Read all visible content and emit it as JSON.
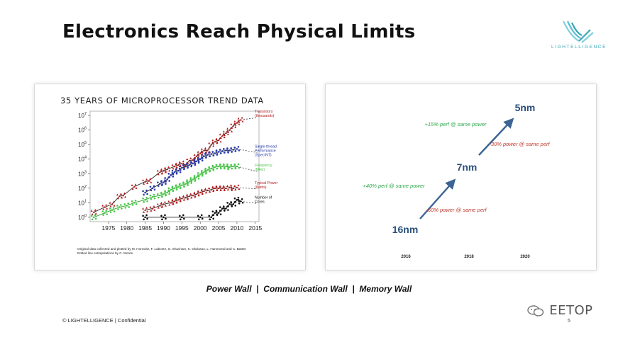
{
  "slide": {
    "title": "Electronics Reach Physical Limits",
    "logo_text": "LIGHTELLIGENCE",
    "walls_text": "Power Wall  |  Communication Wall  |  Memory Wall",
    "copyright": "© LIGHTELLIGENCE | Confidential",
    "page_number": "5",
    "watermark": "EETOP"
  },
  "colors": {
    "transistors": "#b01c1c",
    "single_thread": "#2a3ca8",
    "frequency": "#4cc94c",
    "power": "#b01c1c",
    "cores": "#111111",
    "arrow": "#3c6494",
    "node_text": "#2a4f7c",
    "perf_text": "#2ea84a",
    "power_text": "#c0392b"
  },
  "chart_data": [
    {
      "type": "scatter",
      "title": "35 YEARS OF MICROPROCESSOR TREND DATA",
      "x_ticks": [
        "1975",
        "1980",
        "1985",
        "1990",
        "1995",
        "2000",
        "2005",
        "2010",
        "2015"
      ],
      "y_ticks": [
        "10^0",
        "10^1",
        "10^2",
        "10^3",
        "10^4",
        "10^5",
        "10^6",
        "10^7"
      ],
      "xlim": [
        1970,
        2016
      ],
      "ylim_log10": [
        -0.3,
        7.3
      ],
      "y_scale": "log",
      "series": [
        {
          "name": "Transistors\n(thousands)",
          "color_key": "transistors",
          "marker": "triangle",
          "points": [
            [
              1971,
              0.35
            ],
            [
              1974,
              0.7
            ],
            [
              1976,
              0.9
            ],
            [
              1978,
              1.45
            ],
            [
              1979,
              1.5
            ],
            [
              1982,
              2.1
            ],
            [
              1985,
              2.45
            ],
            [
              1986,
              2.5
            ],
            [
              1989,
              3.1
            ],
            [
              1990,
              3.2
            ],
            [
              1991,
              3.3
            ],
            [
              1993,
              3.5
            ],
            [
              1994,
              3.6
            ],
            [
              1995,
              3.7
            ],
            [
              1996,
              3.6
            ],
            [
              1997,
              3.9
            ],
            [
              1998,
              3.95
            ],
            [
              1999,
              4.2
            ],
            [
              2000,
              4.4
            ],
            [
              2001,
              4.6
            ],
            [
              2002,
              4.6
            ],
            [
              2003,
              5.0
            ],
            [
              2004,
              5.2
            ],
            [
              2005,
              5.3
            ],
            [
              2006,
              5.6
            ],
            [
              2007,
              5.8
            ],
            [
              2008,
              6.0
            ],
            [
              2009,
              6.3
            ],
            [
              2010,
              6.5
            ],
            [
              2011,
              6.7
            ]
          ]
        },
        {
          "name": "Single-thread\nPerformance\n(SpecINT)",
          "color_key": "single_thread",
          "marker": "dot",
          "points": [
            [
              1985,
              1.7
            ],
            [
              1987,
              2.0
            ],
            [
              1989,
              2.3
            ],
            [
              1990,
              2.4
            ],
            [
              1991,
              2.6
            ],
            [
              1992,
              2.9
            ],
            [
              1993,
              3.1
            ],
            [
              1994,
              3.2
            ],
            [
              1995,
              3.4
            ],
            [
              1996,
              3.5
            ],
            [
              1997,
              3.6
            ],
            [
              1998,
              3.7
            ],
            [
              1999,
              3.85
            ],
            [
              2000,
              4.0
            ],
            [
              2001,
              4.2
            ],
            [
              2002,
              4.3
            ],
            [
              2003,
              4.35
            ],
            [
              2004,
              4.4
            ],
            [
              2005,
              4.5
            ],
            [
              2006,
              4.55
            ],
            [
              2007,
              4.6
            ],
            [
              2008,
              4.6
            ],
            [
              2009,
              4.65
            ],
            [
              2010,
              4.7
            ]
          ]
        },
        {
          "name": "Frequency\n(MHz)",
          "color_key": "frequency",
          "marker": "dot",
          "points": [
            [
              1971,
              0.0
            ],
            [
              1974,
              0.3
            ],
            [
              1976,
              0.5
            ],
            [
              1978,
              0.7
            ],
            [
              1980,
              0.8
            ],
            [
              1982,
              1.0
            ],
            [
              1985,
              1.2
            ],
            [
              1987,
              1.4
            ],
            [
              1989,
              1.5
            ],
            [
              1990,
              1.6
            ],
            [
              1991,
              1.7
            ],
            [
              1992,
              1.9
            ],
            [
              1993,
              2.0
            ],
            [
              1994,
              2.1
            ],
            [
              1995,
              2.2
            ],
            [
              1996,
              2.3
            ],
            [
              1997,
              2.45
            ],
            [
              1998,
              2.6
            ],
            [
              1999,
              2.75
            ],
            [
              2000,
              2.95
            ],
            [
              2001,
              3.1
            ],
            [
              2002,
              3.25
            ],
            [
              2003,
              3.35
            ],
            [
              2004,
              3.45
            ],
            [
              2005,
              3.5
            ],
            [
              2006,
              3.5
            ],
            [
              2007,
              3.5
            ],
            [
              2008,
              3.45
            ],
            [
              2009,
              3.5
            ],
            [
              2010,
              3.5
            ]
          ]
        },
        {
          "name": "Typical Power\n(Watts)",
          "color_key": "power",
          "marker": "triangle",
          "points": [
            [
              1985,
              0.5
            ],
            [
              1987,
              0.6
            ],
            [
              1989,
              0.8
            ],
            [
              1990,
              0.9
            ],
            [
              1992,
              1.0
            ],
            [
              1993,
              1.1
            ],
            [
              1994,
              1.2
            ],
            [
              1995,
              1.3
            ],
            [
              1996,
              1.35
            ],
            [
              1997,
              1.45
            ],
            [
              1998,
              1.5
            ],
            [
              1999,
              1.6
            ],
            [
              2000,
              1.7
            ],
            [
              2001,
              1.8
            ],
            [
              2002,
              1.85
            ],
            [
              2003,
              1.9
            ],
            [
              2004,
              2.0
            ],
            [
              2005,
              2.0
            ],
            [
              2006,
              2.0
            ],
            [
              2007,
              2.0
            ],
            [
              2008,
              2.05
            ],
            [
              2009,
              2.0
            ],
            [
              2010,
              2.05
            ]
          ]
        },
        {
          "name": "Number of\nCores",
          "color_key": "cores",
          "marker": "dot",
          "points": [
            [
              1985,
              0
            ],
            [
              1990,
              0
            ],
            [
              1995,
              0
            ],
            [
              2000,
              0
            ],
            [
              2003,
              0
            ],
            [
              2004,
              0.3
            ],
            [
              2005,
              0.3
            ],
            [
              2006,
              0.6
            ],
            [
              2007,
              0.6
            ],
            [
              2008,
              0.9
            ],
            [
              2009,
              0.9
            ],
            [
              2010,
              1.2
            ],
            [
              2011,
              1.1
            ]
          ]
        }
      ],
      "footnote": [
        "Original data collected and plotted by M. Horowitz, F. Labonte, O. Shacham, K. Olukotun, L. Hammond and C. Batten",
        "Dotted line extrapolations by C. Moore"
      ]
    },
    {
      "type": "line",
      "x_ticks": [
        "2016",
        "2018",
        "2020"
      ],
      "nodes": [
        {
          "label": "16nm",
          "year": 2016
        },
        {
          "label": "7nm",
          "year": 2018
        },
        {
          "label": "5nm",
          "year": 2020
        }
      ],
      "annotations": [
        {
          "text": "+40% perf @ same power",
          "color_key": "perf_text"
        },
        {
          "text": "-60% power @ same perf",
          "color_key": "power_text"
        },
        {
          "text": "+15% perf @ same power",
          "color_key": "perf_text"
        },
        {
          "text": "-30% power @ same perf",
          "color_key": "power_text"
        }
      ]
    }
  ]
}
